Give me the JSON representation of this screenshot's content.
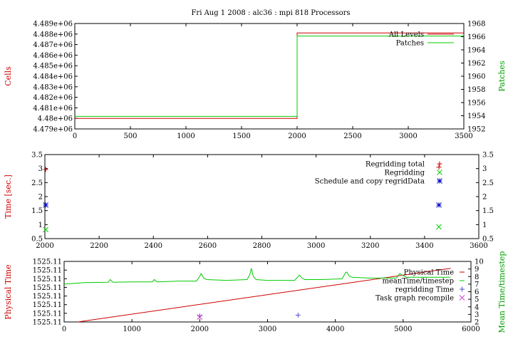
{
  "chart_data": [
    {
      "type": "line",
      "title": "Fri Aug 1 2008 : alc36 : mpi 818 Processors",
      "ylabel": "Cells",
      "y2label": "Patches",
      "xlim": [
        0,
        3500
      ],
      "ylim": [
        4479000,
        4489000
      ],
      "y2lim": [
        1952,
        1968
      ],
      "xticks": [
        0,
        500,
        1000,
        1500,
        2000,
        2500,
        3000,
        3500
      ],
      "yticks": [
        "4.479e+06",
        "4.48e+06",
        "4.481e+06",
        "4.482e+06",
        "4.483e+06",
        "4.484e+06",
        "4.485e+06",
        "4.486e+06",
        "4.487e+06",
        "4.488e+06",
        "4.489e+06"
      ],
      "y2ticks": [
        1952,
        1954,
        1956,
        1958,
        1960,
        1962,
        1964,
        1966,
        1968
      ],
      "legend": [
        "All Levels",
        "Patches"
      ],
      "series": [
        {
          "name": "All Levels",
          "color": "#cc0000",
          "axis": "y",
          "x": [
            0,
            2000,
            2000,
            3500
          ],
          "y": [
            4480000,
            4480000,
            4488100,
            4488100
          ]
        },
        {
          "name": "Patches",
          "color": "#00cc00",
          "axis": "y2",
          "x": [
            0,
            2000,
            2000,
            3500
          ],
          "y": [
            1953.9,
            1953.9,
            1966.1,
            1966.1
          ]
        }
      ]
    },
    {
      "type": "scatter",
      "ylabel": "Time [sec.]",
      "xlim": [
        2000,
        3600
      ],
      "ylim": [
        0.5,
        3.5
      ],
      "y2lim": [
        0.5,
        3.5
      ],
      "xticks": [
        2000,
        2200,
        2400,
        2600,
        2800,
        3000,
        3200,
        3400,
        3600
      ],
      "yticks": [
        "0.5",
        "1",
        "1.5",
        "2",
        "2.5",
        "3",
        "3.5"
      ],
      "y2ticks": [
        "0.5",
        "1",
        "1.5",
        "2",
        "2.5",
        "3",
        "3.5"
      ],
      "legend": [
        "Regridding total",
        "Regridding",
        "Schedule and copy regridData"
      ],
      "series": [
        {
          "name": "Regridding total",
          "color": "#cc0000",
          "marker": "+",
          "x": [
            2003,
            3453
          ],
          "y": [
            2.97,
            3.05
          ]
        },
        {
          "name": "Regridding",
          "color": "#00cc00",
          "marker": "x",
          "x": [
            2003,
            3453
          ],
          "y": [
            0.82,
            0.92
          ]
        },
        {
          "name": "Schedule and copy regridData",
          "color": "#0000cc",
          "marker": "*",
          "x": [
            2003,
            3453
          ],
          "y": [
            1.7,
            1.7
          ]
        }
      ]
    },
    {
      "type": "line",
      "ylabel": "Physical Time",
      "y2label": "Mean Time/timestep",
      "xlim": [
        0,
        6000
      ],
      "ylim": [
        0,
        7
      ],
      "y2lim": [
        2,
        10
      ],
      "xticks": [
        0,
        1000,
        2000,
        3000,
        4000,
        5000,
        6000
      ],
      "yticks": [
        "1525.11",
        "1525.11",
        "1525.11",
        "1525.11",
        "1525.11",
        "1525.11",
        "1525.11",
        "1525.11"
      ],
      "y2ticks": [
        2,
        3,
        4,
        5,
        6,
        7,
        8,
        9,
        10
      ],
      "legend": [
        "Physical Time",
        "meanTime/timestep",
        "regridding Time",
        "Task graph recompile"
      ],
      "series": [
        {
          "name": "Physical Time",
          "color": "#cc0000",
          "axis": "y",
          "x": [
            200,
            5700
          ],
          "y": [
            0,
            6.2
          ]
        },
        {
          "name": "meanTime/timestep",
          "color": "#00cc00",
          "axis": "y2",
          "x": [
            0,
            300,
            650,
            680,
            720,
            1000,
            1300,
            1330,
            1370,
            1700,
            1950,
            2000,
            2020,
            2060,
            2100,
            2400,
            2700,
            2740,
            2760,
            2790,
            2830,
            3000,
            3400,
            3450,
            3470,
            3510,
            3550,
            3800,
            4100,
            4150,
            4170,
            4200,
            4250,
            4500,
            4900,
            4950,
            4980,
            5050,
            5200,
            5500,
            5700
          ],
          "y": [
            7.0,
            7.2,
            7.25,
            7.6,
            7.25,
            7.3,
            7.3,
            7.6,
            7.3,
            7.4,
            7.4,
            8.0,
            8.4,
            7.8,
            7.6,
            7.5,
            7.6,
            8.3,
            9.1,
            8.0,
            7.6,
            7.5,
            7.5,
            8.0,
            8.2,
            7.8,
            7.6,
            7.6,
            7.7,
            8.5,
            8.6,
            8.1,
            7.9,
            7.8,
            7.8,
            8.4,
            8.2,
            7.9,
            7.9,
            7.9,
            7.9
          ]
        },
        {
          "name": "regridding Time",
          "color": "#5050cc",
          "axis": "y2",
          "marker": "+",
          "x": [
            2000,
            3450
          ],
          "y": [
            2.8,
            2.9
          ]
        },
        {
          "name": "Task graph recompile",
          "color": "#cc44cc",
          "axis": "y2",
          "marker": "x",
          "x": [
            2000
          ],
          "y": [
            2.65
          ]
        }
      ]
    }
  ]
}
